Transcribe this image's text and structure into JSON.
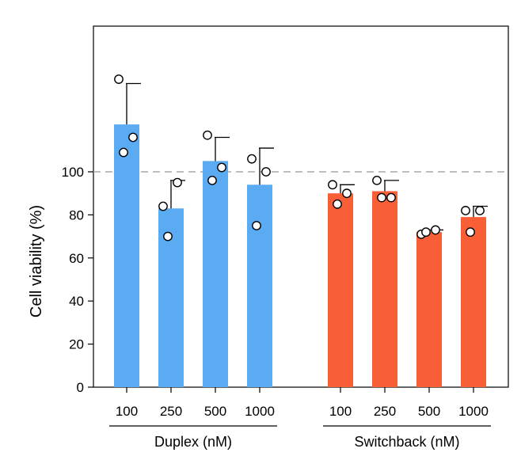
{
  "chart_data": {
    "type": "bar",
    "ylabel": "Cell viability (%)",
    "ylim": [
      0,
      170
    ],
    "yticks": [
      0,
      20,
      40,
      60,
      80,
      100
    ],
    "reference_line": 100,
    "groups": [
      {
        "name": "Duplex (nM)",
        "color": "#5aabf1",
        "categories": [
          "100",
          "250",
          "500",
          "1000"
        ],
        "values": [
          122,
          83,
          105,
          94
        ],
        "errors": [
          19,
          13,
          11,
          17
        ],
        "points": [
          [
            143,
            116,
            109
          ],
          [
            84,
            95,
            70
          ],
          [
            117,
            102,
            96
          ],
          [
            106,
            100,
            75
          ]
        ]
      },
      {
        "name": "Switchback (nM)",
        "color": "#f95f36",
        "categories": [
          "100",
          "250",
          "500",
          "1000"
        ],
        "values": [
          90,
          91,
          72,
          79
        ],
        "errors": [
          4,
          5,
          1,
          5
        ],
        "points": [
          [
            94,
            90,
            85
          ],
          [
            96,
            88,
            88
          ],
          [
            71,
            73,
            72
          ],
          [
            82,
            82,
            72
          ]
        ]
      }
    ]
  }
}
